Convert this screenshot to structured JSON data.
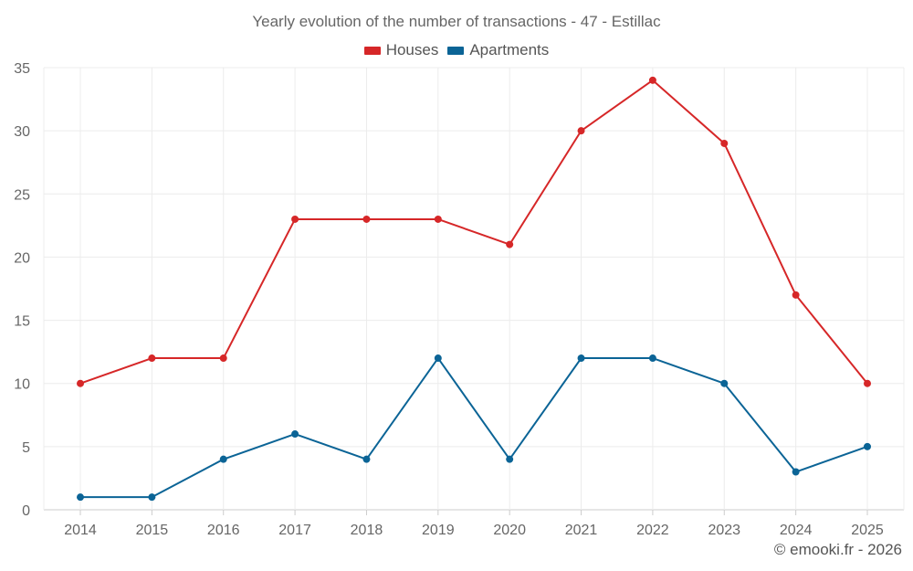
{
  "chart_data": {
    "type": "line",
    "title": "Yearly evolution of the number of transactions - 47 - Estillac",
    "categories": [
      "2014",
      "2015",
      "2016",
      "2017",
      "2018",
      "2019",
      "2020",
      "2021",
      "2022",
      "2023",
      "2024",
      "2025"
    ],
    "series": [
      {
        "name": "Houses",
        "color": "#d62728",
        "values": [
          10,
          12,
          12,
          23,
          23,
          23,
          21,
          30,
          34,
          29,
          17,
          10
        ]
      },
      {
        "name": "Apartments",
        "color": "#0b6496",
        "values": [
          1,
          1,
          4,
          6,
          4,
          12,
          4,
          12,
          12,
          10,
          3,
          5
        ]
      }
    ],
    "yticks": [
      0,
      5,
      10,
      15,
      20,
      25,
      30,
      35
    ],
    "ylim": [
      0,
      35
    ],
    "grid": true,
    "legend": "top-center"
  },
  "credit": "© emooki.fr - 2026"
}
